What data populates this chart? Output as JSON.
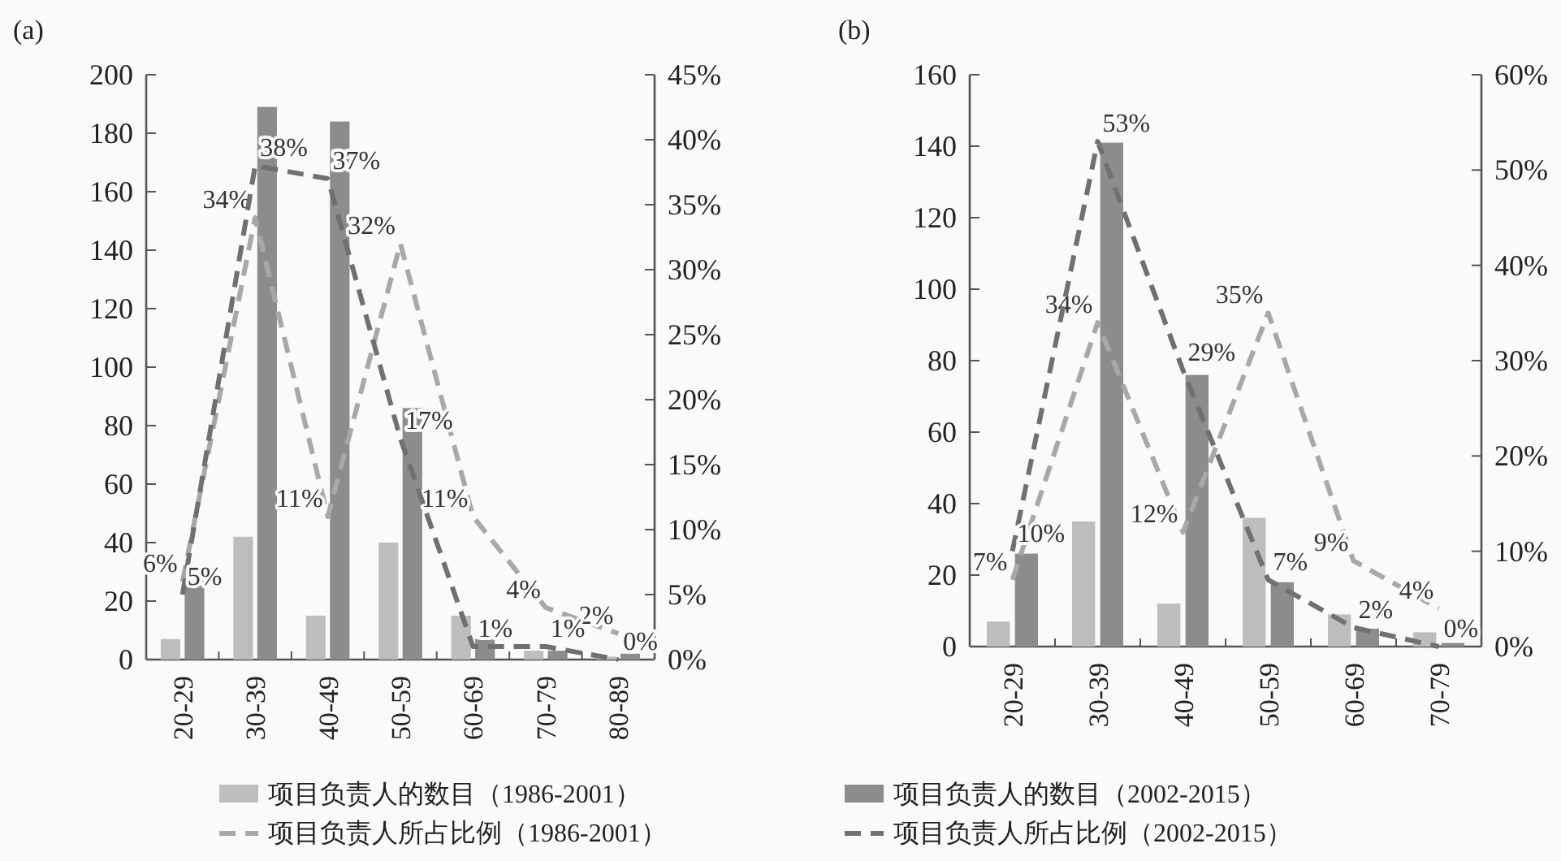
{
  "chart_data": [
    {
      "type": "bar",
      "title": "(a)",
      "categories": [
        "20-29",
        "30-39",
        "40-49",
        "50-59",
        "60-69",
        "70-79",
        "80-89"
      ],
      "ylim": [
        0,
        200
      ],
      "yticks": [
        0,
        20,
        40,
        60,
        80,
        100,
        120,
        140,
        160,
        180,
        200
      ],
      "y2lim": [
        0,
        45
      ],
      "y2ticks": [
        {
          "value": 0,
          "label": "0%"
        },
        {
          "value": 5,
          "label": "5%"
        },
        {
          "value": 10,
          "label": "10%"
        },
        {
          "value": 15,
          "label": "15%"
        },
        {
          "value": 20,
          "label": "20%"
        },
        {
          "value": 25,
          "label": "25%"
        },
        {
          "value": 30,
          "label": "30%"
        },
        {
          "value": 35,
          "label": "35%"
        },
        {
          "value": 40,
          "label": "40%"
        },
        {
          "value": 45,
          "label": "45%"
        }
      ],
      "legend": "bottom",
      "series": [
        {
          "name": "项目负责人的数目（1986-2001）",
          "color": "#bdbdbd",
          "values": [
            7,
            42,
            15,
            40,
            15,
            3,
            1
          ]
        },
        {
          "name": "项目负责人的数目（2002-2015）",
          "color": "#8c8c8c",
          "values": [
            27,
            189,
            184,
            86,
            7,
            3,
            2
          ]
        },
        {
          "name": "项目负责人所占比例（1986-2001）",
          "type": "line",
          "axis": "y2",
          "line_style": "dashed",
          "color": "#a8a8a8",
          "values": [
            6,
            34,
            11,
            32,
            11,
            4,
            2
          ],
          "value_labels": [
            "6%",
            "34%",
            "11%",
            "32%",
            "11%",
            "4%",
            "2%"
          ]
        },
        {
          "name": "项目负责人所占比例（2002-2015）",
          "type": "line",
          "axis": "y2",
          "line_style": "dashed",
          "color": "#707070",
          "values": [
            5,
            38,
            37,
            17,
            1,
            1,
            0
          ],
          "value_labels": [
            "5%",
            "38%",
            "37%",
            "17%",
            "1%",
            "1%",
            "0%"
          ]
        }
      ]
    },
    {
      "type": "bar",
      "title": "(b)",
      "categories": [
        "20-29",
        "30-39",
        "40-49",
        "50-59",
        "60-69",
        "70-79"
      ],
      "ylim": [
        0,
        160
      ],
      "yticks": [
        0,
        20,
        40,
        60,
        80,
        100,
        120,
        140,
        160
      ],
      "y2lim": [
        0,
        60
      ],
      "y2ticks": [
        {
          "value": 0,
          "label": "0%"
        },
        {
          "value": 10,
          "label": "10%"
        },
        {
          "value": 20,
          "label": "20%"
        },
        {
          "value": 30,
          "label": "30%"
        },
        {
          "value": 40,
          "label": "40%"
        },
        {
          "value": 50,
          "label": "50%"
        },
        {
          "value": 60,
          "label": "60%"
        }
      ],
      "series": [
        {
          "color": "#bdbdbd",
          "values": [
            7,
            35,
            12,
            36,
            9,
            4
          ]
        },
        {
          "color": "#8c8c8c",
          "values": [
            26,
            141,
            76,
            18,
            5,
            1
          ]
        },
        {
          "type": "line",
          "axis": "y2",
          "line_style": "dashed",
          "color": "#a8a8a8",
          "values": [
            7,
            34,
            12,
            35,
            9,
            4
          ],
          "value_labels": [
            "7%",
            "34%",
            "12%",
            "35%",
            "9%",
            "4%"
          ]
        },
        {
          "type": "line",
          "axis": "y2",
          "line_style": "dashed",
          "color": "#707070",
          "values": [
            10,
            53,
            29,
            7,
            2,
            0
          ],
          "value_labels": [
            "10%",
            "53%",
            "29%",
            "7%",
            "2%",
            "0%"
          ]
        }
      ]
    }
  ]
}
